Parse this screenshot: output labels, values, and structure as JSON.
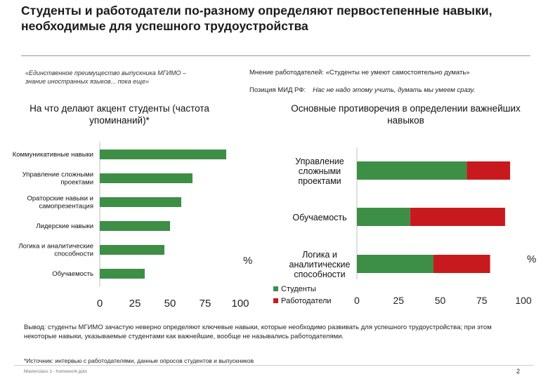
{
  "header": {
    "title": "Студенты и работодатели по-разному определяют первостепенные навыки, необходимые для успешного трудоустройства"
  },
  "quotes": {
    "left": "«Единственное преимущество выпускника МГИМО – знание иностранных языков... пока еще»",
    "employer_opinion": "Мнение работодателей: «Студенты не умеют самостоятельно думать»",
    "ministry_label": "Позиция МИД РФ:",
    "ministry_value": "Нас не надо этому учить, думать мы умеем сразу."
  },
  "conclusion": "Вывод: студенты МГИМО зачастую неверно определяют ключевые навыки, которые необходимо развивать для успешного трудоустройства; при этом некоторые навыки, указываемые студентами как важнейшие, вообще не назывались работодателями.",
  "footnote": "*Источник: интервью с работодателями, данные опросов студентов и выпускников",
  "footer_label": "Masterclass 1 - homework.pptx",
  "page_number": "2",
  "colors": {
    "green": "#3d8f46",
    "red": "#c81a1e",
    "axis": "#bfbfbf"
  },
  "chart_data": [
    {
      "type": "bar",
      "orientation": "horizontal",
      "title": "На что делают акцент студенты (частота упоминаний)*",
      "categories": [
        "Коммуникативные навыки",
        "Управление сложными проектами",
        "Ораторские навыки и самопрезентация",
        "Лидерские навыки",
        "Логика и аналитические способности",
        "Обучаемость"
      ],
      "category_lines": [
        [
          "Коммуникативные навыки"
        ],
        [
          "Управление сложными",
          "проектами"
        ],
        [
          "Ораторские навыки и",
          "самопрезентация"
        ],
        [
          "Лидерские навыки"
        ],
        [
          "Логика и аналитические",
          "способности"
        ],
        [
          "Обучаемость"
        ]
      ],
      "values": [
        90,
        66,
        58,
        50,
        46,
        32
      ],
      "xlim": [
        0,
        100
      ],
      "ticks": [
        "0",
        "25",
        "50",
        "75",
        "100"
      ],
      "unit_label": "%"
    },
    {
      "type": "bar",
      "orientation": "horizontal",
      "stacked": true,
      "title": "Основные противоречия в определении важнейших навыков",
      "categories": [
        "Управление сложными проектами",
        "Обучаемость",
        "Логика и аналитические способности"
      ],
      "category_lines": [
        [
          "Управление",
          "сложными",
          "проектами"
        ],
        [
          "Обучаемость"
        ],
        [
          "Логика и",
          "аналитические",
          "способности"
        ]
      ],
      "series": [
        {
          "name": "Студенты",
          "values": [
            66,
            32,
            46
          ]
        },
        {
          "name": "Работодатели",
          "values": [
            26,
            57,
            34
          ]
        }
      ],
      "xlim": [
        0,
        100
      ],
      "ticks": [
        "0",
        "25",
        "50",
        "75",
        "100"
      ],
      "unit_label": "%"
    }
  ]
}
